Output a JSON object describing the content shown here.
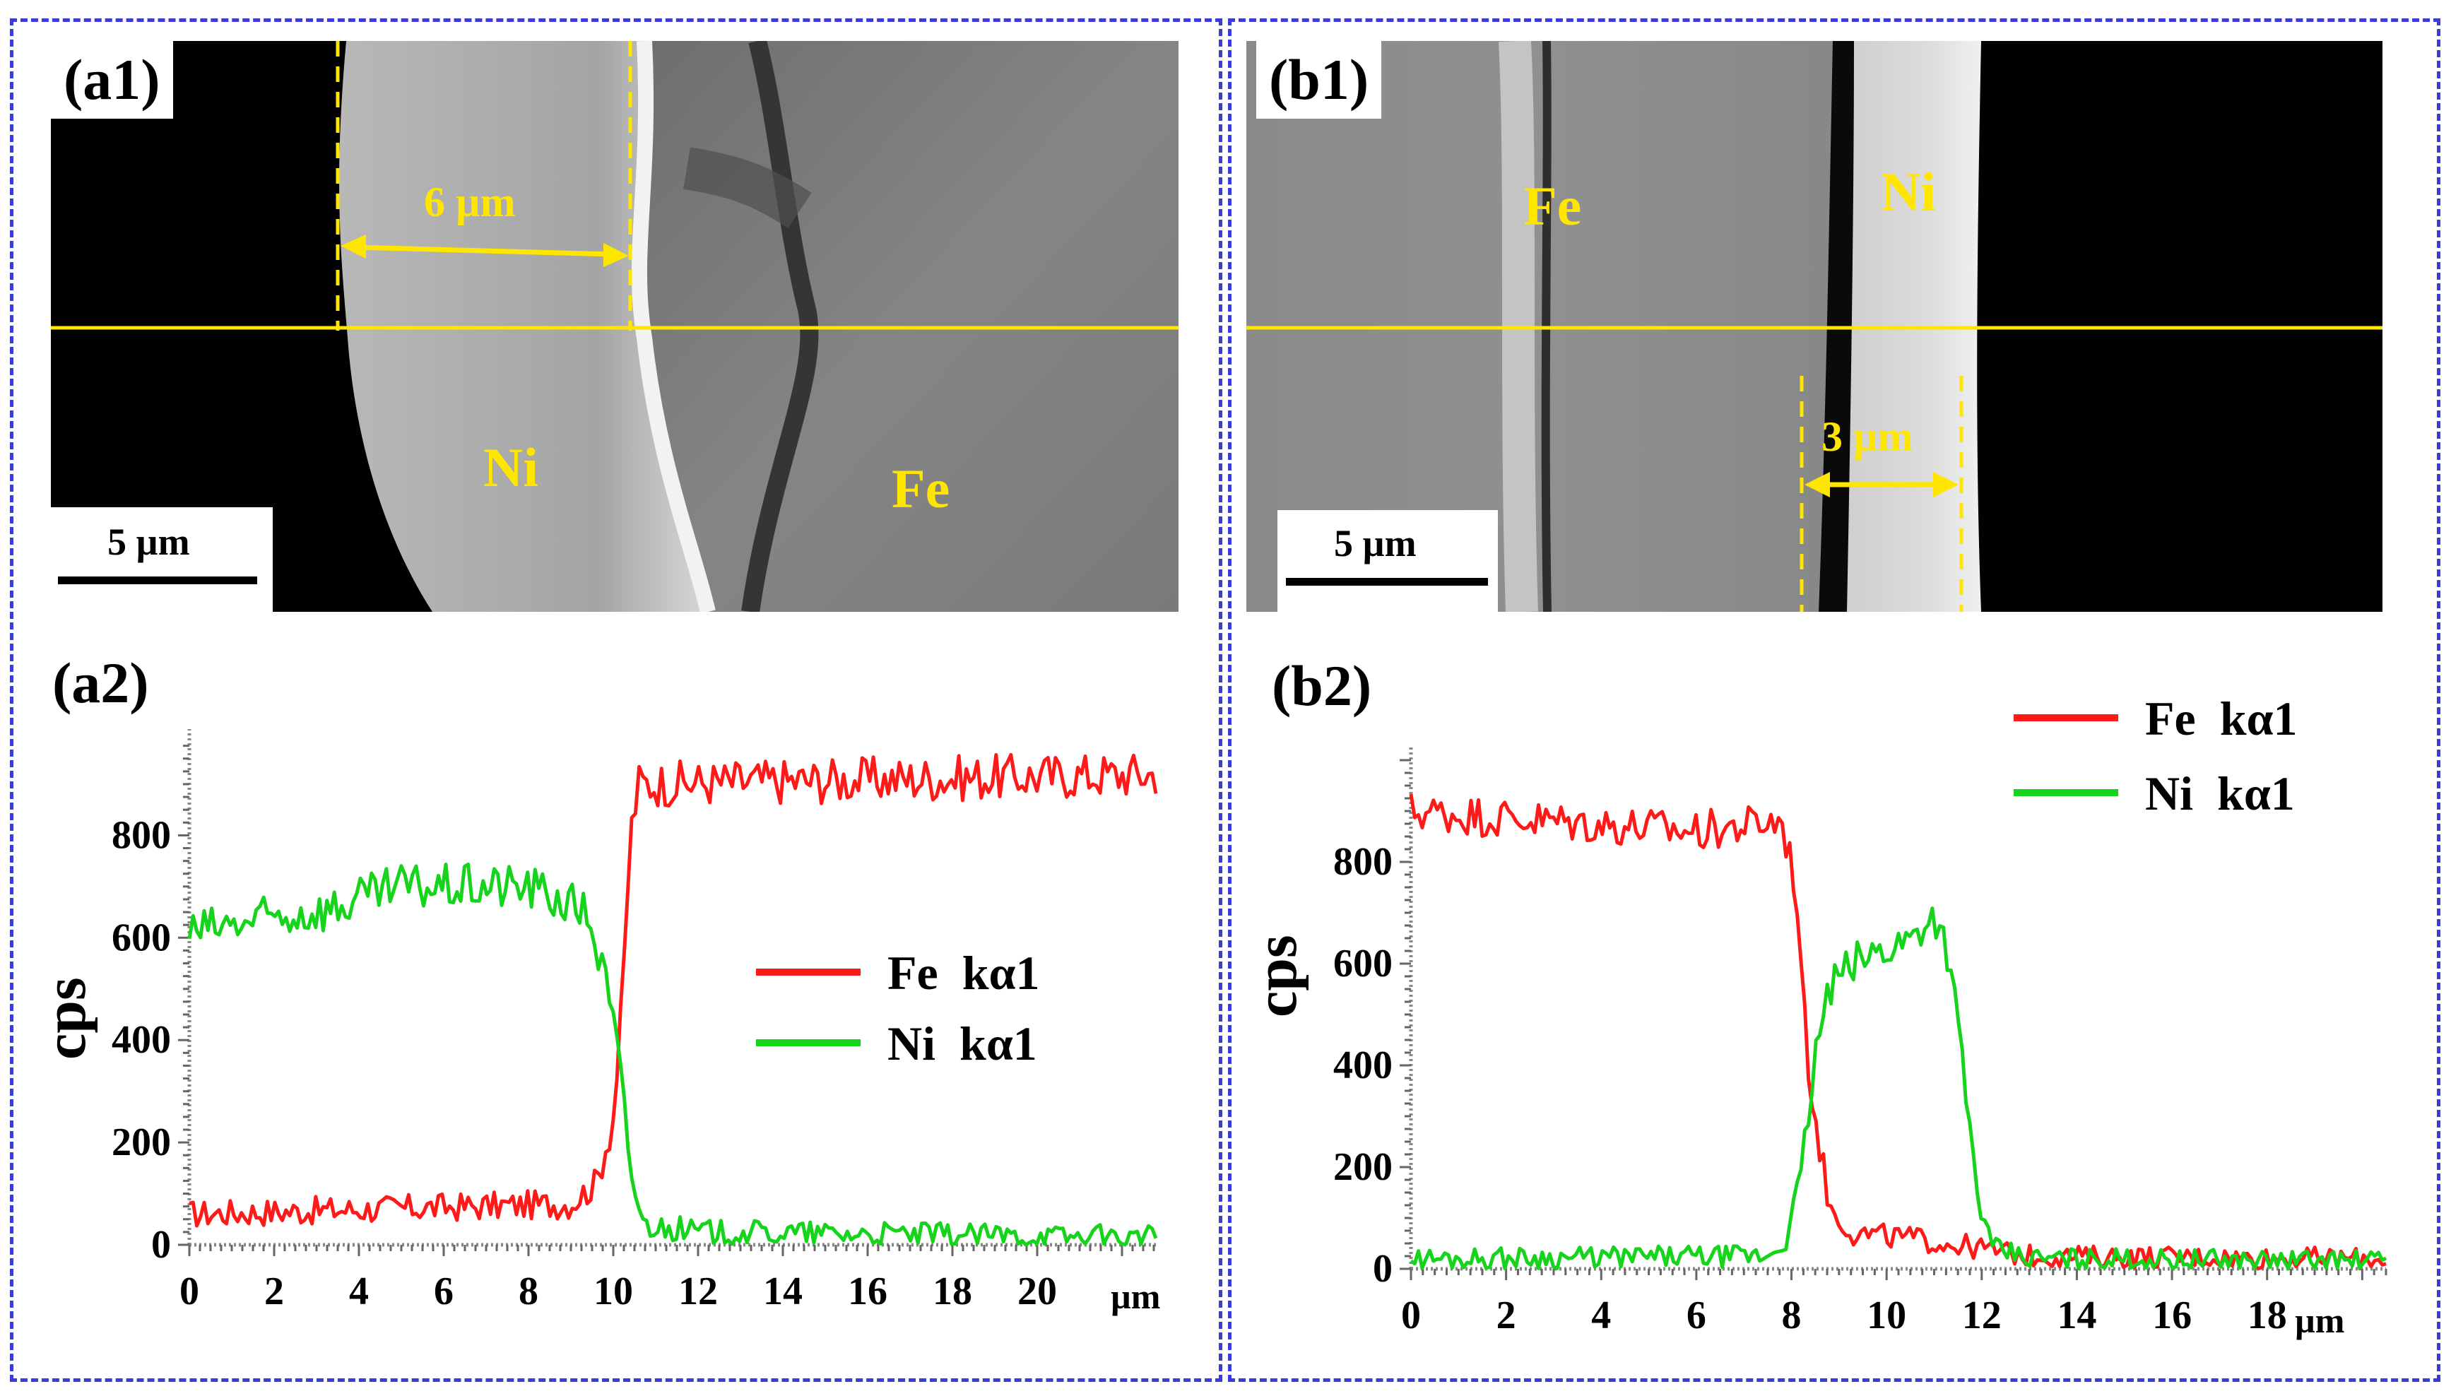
{
  "figure": {
    "panel_a": {
      "image_label": "(a1)",
      "plot_label": "(a2)",
      "scale_bar": "5 µm",
      "width_annotation": "6 µm",
      "phase_labels": {
        "ni": "Ni",
        "fe": "Fe"
      }
    },
    "panel_b": {
      "image_label": "(b1)",
      "plot_label": "(b2)",
      "scale_bar": "5 µm",
      "width_annotation": "3 µm",
      "phase_labels": {
        "fe": "Fe",
        "ni": "Ni"
      }
    }
  },
  "colors": {
    "fe": "#ff1a1a",
    "ni": "#16d31c",
    "annotation": "#ffe600",
    "border": "#3b3bd9"
  },
  "chart_data": [
    {
      "id": "a2",
      "type": "line",
      "xlabel": "µm",
      "ylabel": "cps",
      "xlim": [
        0,
        22.8
      ],
      "ylim": [
        0,
        980
      ],
      "xticks": [
        0,
        2,
        4,
        6,
        8,
        10,
        12,
        14,
        16,
        18,
        20
      ],
      "yticks": [
        0,
        200,
        400,
        600,
        800
      ],
      "legend": "middle-right",
      "series": [
        {
          "name": "Fe  kα1",
          "color": "#ff1a1a",
          "profile": [
            [
              0,
              60
            ],
            [
              9.0,
              80
            ],
            [
              9.6,
              120
            ],
            [
              10.0,
              250
            ],
            [
              10.2,
              450
            ],
            [
              10.4,
              800
            ],
            [
              10.6,
              900
            ],
            [
              22.8,
              920
            ]
          ],
          "noise": 45
        },
        {
          "name": "Ni  kα1",
          "color": "#16d31c",
          "profile": [
            [
              0,
              610
            ],
            [
              3.5,
              660
            ],
            [
              5.0,
              700
            ],
            [
              8.0,
              700
            ],
            [
              9.4,
              650
            ],
            [
              9.8,
              520
            ],
            [
              10.1,
              380
            ],
            [
              10.4,
              150
            ],
            [
              10.7,
              40
            ],
            [
              12.0,
              25
            ],
            [
              22.8,
              15
            ]
          ],
          "noise": 45
        }
      ]
    },
    {
      "id": "b2",
      "type": "line",
      "xlabel": "µm",
      "ylabel": "cps",
      "xlim": [
        0,
        20.5
      ],
      "ylim": [
        0,
        1000
      ],
      "xticks": [
        0,
        2,
        4,
        6,
        8,
        10,
        12,
        14,
        16,
        18
      ],
      "yticks": [
        0,
        200,
        400,
        600,
        800
      ],
      "legend": "top-right",
      "series": [
        {
          "name": "Fe  kα1",
          "color": "#ff1a1a",
          "profile": [
            [
              0,
              900
            ],
            [
              3,
              880
            ],
            [
              6,
              860
            ],
            [
              7.8,
              880
            ],
            [
              8.1,
              750
            ],
            [
              8.3,
              450
            ],
            [
              8.5,
              300
            ],
            [
              8.8,
              120
            ],
            [
              9.3,
              70
            ],
            [
              10.5,
              60
            ],
            [
              12,
              40
            ],
            [
              13,
              25
            ],
            [
              20.5,
              20
            ]
          ],
          "noise": 40
        },
        {
          "name": "Ni  kα1",
          "color": "#16d31c",
          "profile": [
            [
              0,
              20
            ],
            [
              7.5,
              25
            ],
            [
              7.9,
              60
            ],
            [
              8.2,
              180
            ],
            [
              8.5,
              420
            ],
            [
              8.8,
              550
            ],
            [
              9.3,
              600
            ],
            [
              10.5,
              650
            ],
            [
              11.0,
              700
            ],
            [
              11.3,
              620
            ],
            [
              11.6,
              400
            ],
            [
              11.9,
              150
            ],
            [
              12.2,
              40
            ],
            [
              13,
              20
            ],
            [
              20.5,
              15
            ]
          ],
          "noise": 40
        }
      ]
    }
  ]
}
